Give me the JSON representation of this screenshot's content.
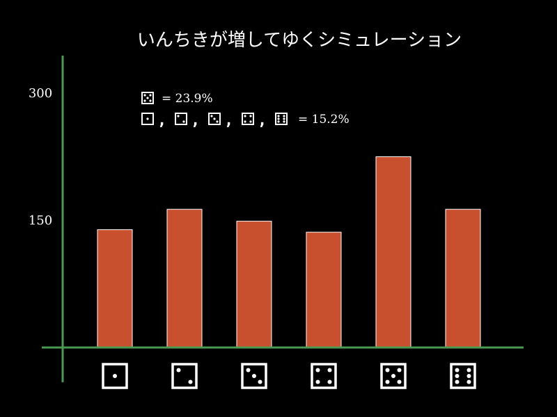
{
  "chart_data": {
    "type": "bar",
    "title": "いんちきが増してゆくシミュレーション",
    "categories": [
      "die-1",
      "die-2",
      "die-3",
      "die-4",
      "die-5",
      "die-6"
    ],
    "category_pips": [
      1,
      2,
      3,
      4,
      5,
      6
    ],
    "values": [
      139,
      163,
      149,
      136,
      225,
      163
    ],
    "ylim": [
      0,
      300
    ],
    "yticks": [
      "150",
      "300"
    ],
    "ytick_values": [
      150,
      300
    ],
    "grid": false,
    "annotations": {
      "loaded_face_pips": 5,
      "loaded_value": "= 23.9%",
      "other_faces_pips": [
        1,
        2,
        3,
        4,
        6
      ],
      "other_value": "= 15.2%"
    },
    "colors": {
      "bar": "#c9502f",
      "bar_stroke": "#ffffff",
      "axis": "#4a9a52",
      "background": "#000000",
      "text": "#ffffff"
    }
  }
}
